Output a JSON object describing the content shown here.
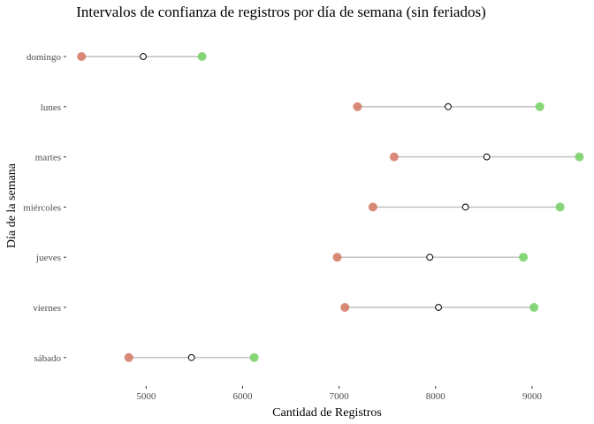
{
  "chart_data": {
    "type": "dot-range",
    "title": "Intervalos de confianza de registros por día de semana (sin feriados)",
    "xlabel": "Cantidad de Registros",
    "ylabel": "Día de la semana",
    "xlim": [
      4200,
      9550
    ],
    "x_ticks": [
      5000,
      6000,
      7000,
      8000,
      9000
    ],
    "x_tick_labels": [
      "5000",
      "6000",
      "7000",
      "8000",
      "9000"
    ],
    "grid": false,
    "categories": [
      "domingo",
      "lunes",
      "martes",
      "miércoles",
      "jueves",
      "viernes",
      "sábado"
    ],
    "series": [
      {
        "role": "lower",
        "values": [
          4330,
          7190,
          7570,
          7350,
          6980,
          7060,
          4820
        ],
        "color": "#d27560"
      },
      {
        "role": "estimate",
        "values": [
          4970,
          8130,
          8530,
          8310,
          7940,
          8030,
          5470
        ],
        "color": "#000000"
      },
      {
        "role": "upper",
        "values": [
          5580,
          9080,
          9490,
          9290,
          8910,
          9020,
          6120
        ],
        "color": "#72cf63"
      }
    ]
  }
}
